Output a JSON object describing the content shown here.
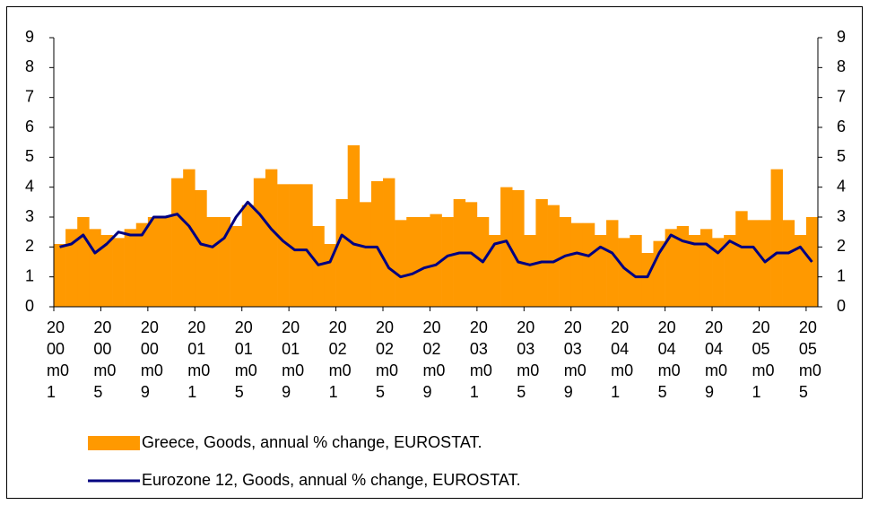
{
  "chart_data": {
    "type": "bar_line",
    "categories": [
      "2000m01",
      null,
      null,
      null,
      "2000m05",
      null,
      null,
      null,
      "2000m09",
      null,
      null,
      null,
      "2001m01",
      null,
      null,
      null,
      "2001m05",
      null,
      null,
      null,
      "2001m09",
      null,
      null,
      null,
      "2002m01",
      null,
      null,
      null,
      "2002m05",
      null,
      null,
      null,
      "2002m09",
      null,
      null,
      null,
      "2003m01",
      null,
      null,
      null,
      "2003m05",
      null,
      null,
      null,
      "2003m09",
      null,
      null,
      null,
      "2004m01",
      null,
      null,
      null,
      "2004m05",
      null,
      null,
      null,
      "2004m09",
      null,
      null,
      null,
      "2005m01",
      null,
      null,
      null,
      "2005m05"
    ],
    "series": [
      {
        "name": "Greece, Goods, annual % change, EUROSTAT.",
        "type": "bar",
        "color": "#ff9900",
        "values": [
          2.1,
          2.6,
          3.0,
          2.6,
          2.4,
          2.3,
          2.6,
          2.8,
          3.0,
          3.0,
          4.3,
          4.6,
          3.9,
          3.0,
          3.0,
          2.7,
          3.4,
          4.3,
          4.6,
          4.1,
          4.1,
          4.1,
          2.7,
          2.1,
          3.6,
          5.4,
          3.5,
          4.2,
          4.3,
          2.9,
          3.0,
          3.0,
          3.1,
          3.0,
          3.6,
          3.5,
          3.0,
          2.4,
          4.0,
          3.9,
          2.4,
          3.6,
          3.4,
          3.0,
          2.8,
          2.8,
          2.4,
          2.9,
          2.3,
          2.4,
          1.8,
          2.2,
          2.6,
          2.7,
          2.4,
          2.6,
          2.3,
          2.4,
          3.2,
          2.9,
          2.9,
          4.6,
          2.9,
          2.4,
          3.0
        ]
      },
      {
        "name": "Eurozone 12, Goods, annual % change, EUROSTAT.",
        "type": "line",
        "color": "#000080",
        "values": [
          2.0,
          2.1,
          2.4,
          1.8,
          2.1,
          2.5,
          2.4,
          2.4,
          3.0,
          3.0,
          3.1,
          2.7,
          2.1,
          2.0,
          2.3,
          3.0,
          3.5,
          3.1,
          2.6,
          2.2,
          1.9,
          1.9,
          1.4,
          1.5,
          2.4,
          2.1,
          2.0,
          2.0,
          1.3,
          1.0,
          1.1,
          1.3,
          1.4,
          1.7,
          1.8,
          1.8,
          1.5,
          2.1,
          2.2,
          1.5,
          1.4,
          1.5,
          1.5,
          1.7,
          1.8,
          1.7,
          2.0,
          1.8,
          1.3,
          1.0,
          1.0,
          1.8,
          2.4,
          2.2,
          2.1,
          2.1,
          1.8,
          2.2,
          2.0,
          2.0,
          1.5,
          1.8,
          1.8,
          2.0,
          1.5
        ]
      }
    ],
    "ylim": [
      0,
      9
    ],
    "yticks": [
      0,
      1,
      2,
      3,
      4,
      5,
      6,
      7,
      8,
      9
    ],
    "y2lim": [
      0,
      9
    ],
    "y2ticks": [
      0,
      1,
      2,
      3,
      4,
      5,
      6,
      7,
      8,
      9
    ]
  }
}
